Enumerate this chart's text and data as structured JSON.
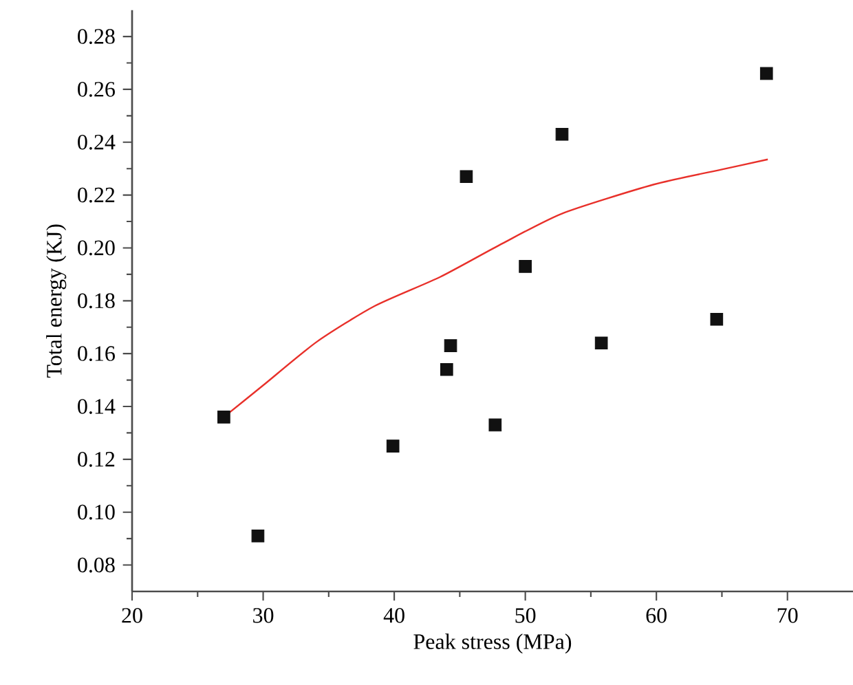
{
  "chart_data": {
    "type": "scatter",
    "xlabel": "Peak stress (MPa)",
    "ylabel": "Total energy (KJ)",
    "xlim": [
      20,
      75
    ],
    "ylim": [
      0.07,
      0.29
    ],
    "xticks": [
      20,
      30,
      40,
      50,
      60,
      70
    ],
    "yticks": [
      0.08,
      {
        "value": 0.1,
        "label": "0.10"
      },
      0.12,
      0.14,
      0.16,
      0.18,
      {
        "value": 0.2,
        "label": "0.20"
      },
      0.22,
      0.24,
      0.26,
      0.28
    ],
    "grid": false,
    "series": [
      {
        "marker": "square",
        "color": "#111111",
        "x": [
          27.0,
          29.6,
          39.9,
          45.5,
          52.8,
          50.0,
          44.3,
          44.0,
          47.7,
          55.8,
          64.6,
          68.4
        ],
        "values": [
          0.136,
          0.091,
          0.125,
          0.227,
          0.243,
          0.193,
          0.163,
          0.154,
          0.133,
          0.164,
          0.173,
          0.266
        ]
      },
      {
        "type": "line",
        "marker": "none",
        "line_style": "solid",
        "color": "#e8302a",
        "x": [
          27.0,
          30.0,
          34.1,
          38.5,
          43.5,
          48.0,
          52.8,
          59.8,
          65.0,
          68.5
        ],
        "values": [
          0.136,
          0.148,
          0.1645,
          0.178,
          0.189,
          0.201,
          0.213,
          0.224,
          0.2297,
          0.2335
        ]
      }
    ]
  }
}
